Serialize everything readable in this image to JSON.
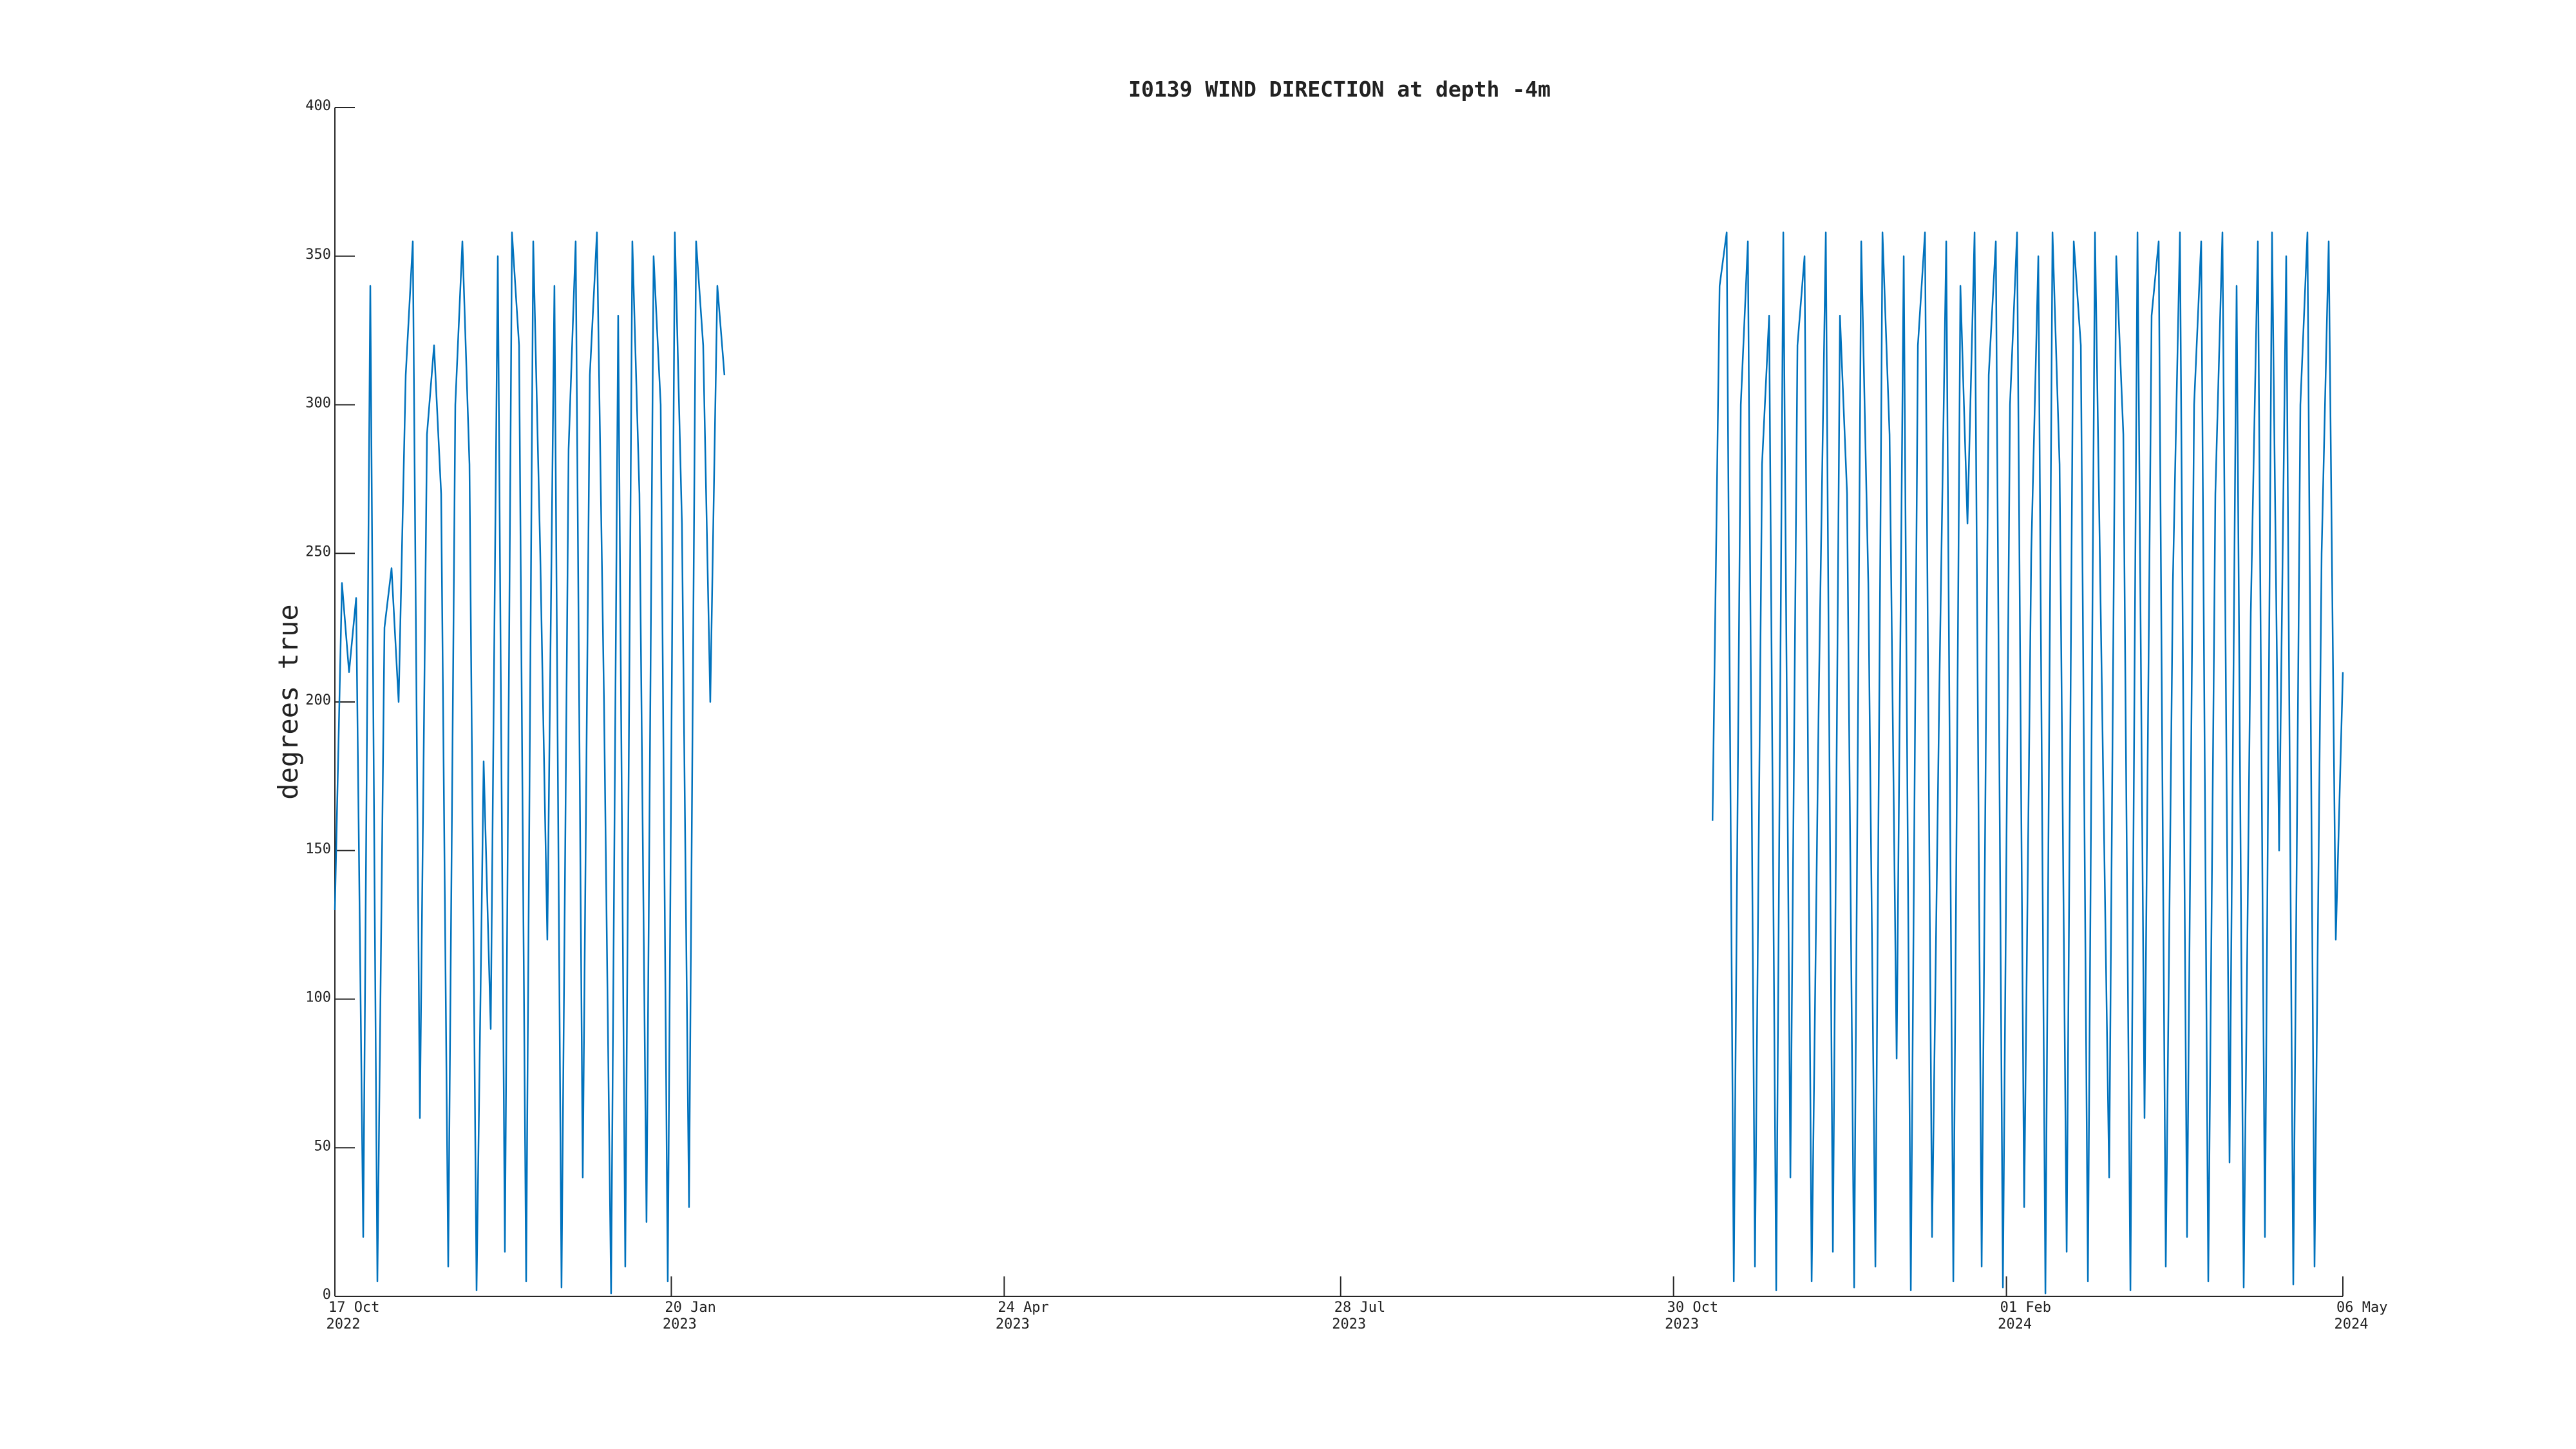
{
  "chart_data": {
    "type": "line",
    "title": "I0139 WIND DIRECTION at depth -4m",
    "ylabel": "degrees true",
    "color": "#0072bd",
    "x": [
      "2022-10-17",
      "2022-10-19",
      "2022-10-21",
      "2022-10-23",
      "2022-10-25",
      "2022-10-27",
      "2022-10-29",
      "2022-10-31",
      "2022-11-02",
      "2022-11-04",
      "2022-11-06",
      "2022-11-08",
      "2022-11-10",
      "2022-11-12",
      "2022-11-14",
      "2022-11-16",
      "2022-11-18",
      "2022-11-20",
      "2022-11-22",
      "2022-11-24",
      "2022-11-26",
      "2022-11-28",
      "2022-11-30",
      "2022-12-02",
      "2022-12-04",
      "2022-12-06",
      "2022-12-08",
      "2022-12-10",
      "2022-12-12",
      "2022-12-14",
      "2022-12-16",
      "2022-12-18",
      "2022-12-20",
      "2022-12-22",
      "2022-12-24",
      "2022-12-26",
      "2022-12-28",
      "2022-12-30",
      "2023-01-01",
      "2023-01-03",
      "2023-01-05",
      "2023-01-07",
      "2023-01-09",
      "2023-01-11",
      "2023-01-13",
      "2023-01-15",
      "2023-01-17",
      "2023-01-19",
      "2023-01-21",
      "2023-01-23",
      "2023-01-25",
      "2023-01-27",
      "2023-01-29",
      "2023-01-31",
      "2023-02-02",
      "2023-02-04",
      "2023-07-01",
      "2023-11-10",
      "2023-11-12",
      "2023-11-14",
      "2023-11-16",
      "2023-11-18",
      "2023-11-20",
      "2023-11-22",
      "2023-11-24",
      "2023-11-26",
      "2023-11-28",
      "2023-11-30",
      "2023-12-02",
      "2023-12-04",
      "2023-12-06",
      "2023-12-08",
      "2023-12-10",
      "2023-12-12",
      "2023-12-14",
      "2023-12-16",
      "2023-12-18",
      "2023-12-20",
      "2023-12-22",
      "2023-12-24",
      "2023-12-26",
      "2023-12-28",
      "2023-12-30",
      "2024-01-01",
      "2024-01-03",
      "2024-01-05",
      "2024-01-07",
      "2024-01-09",
      "2024-01-11",
      "2024-01-13",
      "2024-01-15",
      "2024-01-17",
      "2024-01-19",
      "2024-01-21",
      "2024-01-23",
      "2024-01-25",
      "2024-01-27",
      "2024-01-29",
      "2024-01-31",
      "2024-02-02",
      "2024-02-04",
      "2024-02-06",
      "2024-02-08",
      "2024-02-10",
      "2024-02-12",
      "2024-02-14",
      "2024-02-16",
      "2024-02-18",
      "2024-02-20",
      "2024-02-22",
      "2024-02-24",
      "2024-02-26",
      "2024-02-28",
      "2024-03-01",
      "2024-03-03",
      "2024-03-05",
      "2024-03-07",
      "2024-03-09",
      "2024-03-11",
      "2024-03-13",
      "2024-03-15",
      "2024-03-17",
      "2024-03-19",
      "2024-03-21",
      "2024-03-23",
      "2024-03-25",
      "2024-03-27",
      "2024-03-29",
      "2024-03-31",
      "2024-04-02",
      "2024-04-04",
      "2024-04-06",
      "2024-04-08",
      "2024-04-10",
      "2024-04-12",
      "2024-04-14",
      "2024-04-16",
      "2024-04-18",
      "2024-04-20",
      "2024-04-22",
      "2024-04-24",
      "2024-04-26",
      "2024-04-28",
      "2024-04-30",
      "2024-05-02",
      "2024-05-04",
      "2024-05-06"
    ],
    "values": [
      130,
      240,
      210,
      235,
      20,
      340,
      5,
      225,
      245,
      200,
      310,
      355,
      60,
      290,
      320,
      270,
      10,
      300,
      355,
      280,
      2,
      180,
      90,
      350,
      15,
      358,
      320,
      5,
      355,
      250,
      120,
      340,
      3,
      285,
      355,
      40,
      310,
      358,
      200,
      1,
      330,
      10,
      355,
      270,
      25,
      350,
      300,
      5,
      358,
      260,
      30,
      355,
      320,
      200,
      340,
      310,
      null,
      160,
      340,
      358,
      5,
      300,
      355,
      10,
      280,
      330,
      2,
      358,
      40,
      320,
      350,
      5,
      200,
      358,
      15,
      330,
      270,
      3,
      355,
      240,
      10,
      358,
      290,
      80,
      350,
      2,
      320,
      358,
      20,
      200,
      355,
      5,
      340,
      260,
      358,
      10,
      310,
      355,
      3,
      300,
      358,
      30,
      250,
      350,
      1,
      358,
      280,
      15,
      355,
      320,
      5,
      358,
      200,
      40,
      350,
      290,
      2,
      358,
      60,
      330,
      355,
      10,
      240,
      358,
      20,
      300,
      355,
      5,
      270,
      358,
      45,
      340,
      3,
      230,
      355,
      20,
      358,
      150,
      350,
      4,
      300,
      358,
      10,
      250,
      355,
      120,
      210
    ],
    "xlim": [
      "2022-10-17",
      "2024-05-06"
    ],
    "xticks": [
      {
        "value": "2022-10-17",
        "label": [
          "17 Oct",
          "2022"
        ]
      },
      {
        "value": "2023-01-20",
        "label": [
          "20 Jan",
          "2023"
        ]
      },
      {
        "value": "2023-04-24",
        "label": [
          "24 Apr",
          "2023"
        ]
      },
      {
        "value": "2023-07-28",
        "label": [
          "28 Jul",
          "2023"
        ]
      },
      {
        "value": "2023-10-30",
        "label": [
          "30 Oct",
          "2023"
        ]
      },
      {
        "value": "2024-02-01",
        "label": [
          "01 Feb",
          "2024"
        ]
      },
      {
        "value": "2024-05-06",
        "label": [
          "06 May",
          "2024"
        ]
      }
    ],
    "ylim": [
      0,
      400
    ],
    "yticks": [
      0,
      50,
      100,
      150,
      200,
      250,
      300,
      350,
      400
    ]
  }
}
